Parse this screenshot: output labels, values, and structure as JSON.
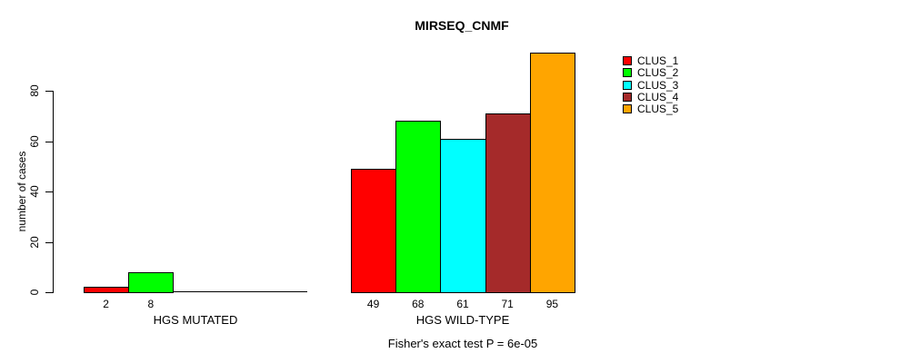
{
  "chart_data": {
    "type": "bar",
    "title": "MIRSEQ_CNMF",
    "ylabel": "number of cases",
    "xlabel": "",
    "annotation": "Fisher's exact test P = 6e-05",
    "yticks": [
      0,
      20,
      40,
      60,
      80
    ],
    "ylim": [
      0,
      95
    ],
    "grid": false,
    "legend_position": "top-right-outside",
    "categories": [
      "HGS MUTATED",
      "HGS WILD-TYPE"
    ],
    "series": [
      {
        "name": "CLUS_1",
        "color": "#FF0000",
        "values": [
          2,
          49
        ]
      },
      {
        "name": "CLUS_2",
        "color": "#00FF00",
        "values": [
          8,
          68
        ]
      },
      {
        "name": "CLUS_3",
        "color": "#00FFFF",
        "values": [
          0,
          61
        ]
      },
      {
        "name": "CLUS_4",
        "color": "#A52A2A",
        "values": [
          0,
          71
        ]
      },
      {
        "name": "CLUS_5",
        "color": "#FFA500",
        "values": [
          0,
          95
        ]
      }
    ],
    "bar_value_labels": [
      [
        "2",
        "8",
        "",
        "",
        ""
      ],
      [
        "49",
        "68",
        "61",
        "71",
        "95"
      ]
    ]
  }
}
